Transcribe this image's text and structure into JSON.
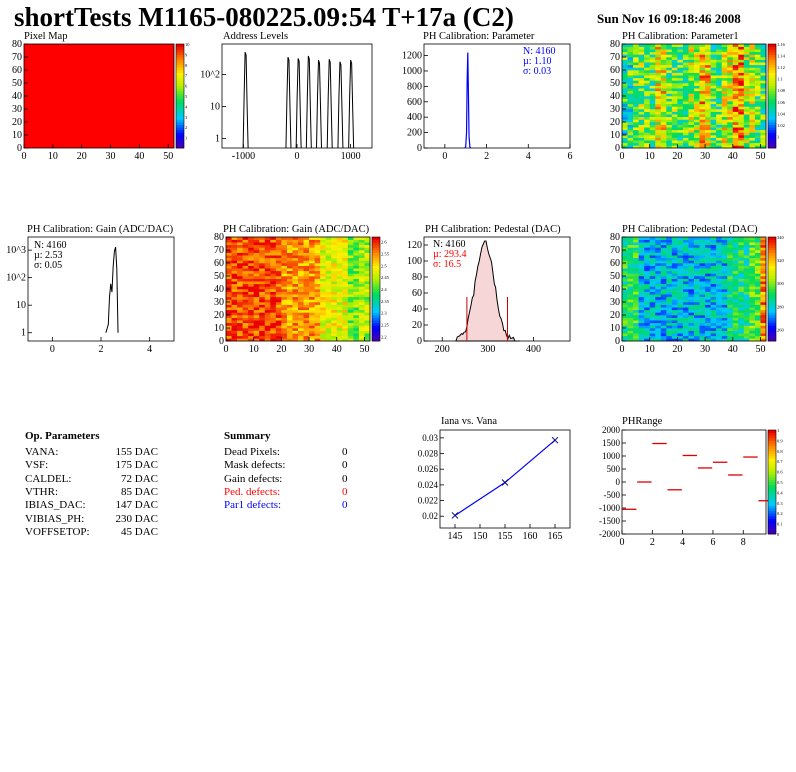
{
  "header": {
    "title": "shortTests M1165-080225.09:54 T+17a (C2)",
    "timestamp": "Sun Nov 16 09:18:46 2008"
  },
  "panels": {
    "pixel_map": {
      "title": "Pixel Map"
    },
    "address_levels": {
      "title": "Address Levels"
    },
    "ph_param": {
      "title": "PH Calibration: Parameter",
      "stats": [
        "N: 4160",
        "µ: 1.10",
        "σ: 0.03"
      ]
    },
    "ph_param1": {
      "title": "PH Calibration: Parameter1"
    },
    "gain_hist": {
      "title": "PH Calibration: Gain (ADC/DAC)",
      "stats": [
        "N: 4160",
        "µ: 2.53",
        "σ: 0.05"
      ]
    },
    "gain_map": {
      "title": "PH Calibration: Gain (ADC/DAC)"
    },
    "ped_hist": {
      "title": "PH Calibration: Pedestal (DAC)",
      "stats": [
        "N: 4160",
        "µ: 293.4",
        "σ: 16.5"
      ]
    },
    "ped_map": {
      "title": "PH Calibration: Pedestal (DAC)"
    },
    "iana": {
      "title": "Iana vs. Vana"
    },
    "phrange": {
      "title": "PHRange"
    }
  },
  "op_parameters": {
    "heading": "Op. Parameters",
    "rows": [
      {
        "name": "VANA:",
        "value": "155 DAC"
      },
      {
        "name": "VSF:",
        "value": "175 DAC"
      },
      {
        "name": "CALDEL:",
        "value": "72 DAC"
      },
      {
        "name": "VTHR:",
        "value": "85 DAC"
      },
      {
        "name": "IBIAS_DAC:",
        "value": "147 DAC"
      },
      {
        "name": "VIBIAS_PH:",
        "value": "230 DAC"
      },
      {
        "name": "VOFFSETOP:",
        "value": "45 DAC"
      }
    ]
  },
  "summary": {
    "heading": "Summary",
    "rows": [
      {
        "name": "Dead Pixels:",
        "value": "0",
        "color": "#000000"
      },
      {
        "name": "Mask defects:",
        "value": "0",
        "color": "#000000"
      },
      {
        "name": "Gain defects:",
        "value": "0",
        "color": "#000000"
      },
      {
        "name": "Ped. defects:",
        "value": "0",
        "color": "#ff0000"
      },
      {
        "name": "Par1 defects:",
        "value": "0",
        "color": "#0000ff"
      }
    ]
  },
  "chart_data": [
    {
      "id": "pixel_map",
      "type": "heatmap",
      "title": "Pixel Map",
      "xlim": [
        0,
        52
      ],
      "ylim": [
        0,
        80
      ],
      "xticks": [
        "0",
        "10",
        "20",
        "30",
        "40",
        "50"
      ],
      "yticks": [
        "0",
        "10",
        "20",
        "30",
        "40",
        "50",
        "60",
        "70",
        "80"
      ],
      "fill": "#ff0000",
      "zlim": [
        0,
        10
      ],
      "zticks": [
        "1",
        "2",
        "3",
        "4",
        "5",
        "6",
        "7",
        "8",
        "9",
        "10"
      ]
    },
    {
      "id": "address_levels",
      "type": "line",
      "title": "Address Levels",
      "log_y": true,
      "xlim": [
        -1400,
        1400
      ],
      "ylim": [
        0.5,
        900
      ],
      "xticks": [
        "-1000",
        "0",
        "1000"
      ],
      "yticks": [
        "1",
        "10",
        "10^2"
      ],
      "peaks": [
        {
          "x": -950,
          "y": 500
        },
        {
          "x": -150,
          "y": 350
        },
        {
          "x": 40,
          "y": 320
        },
        {
          "x": 230,
          "y": 380
        },
        {
          "x": 420,
          "y": 280
        },
        {
          "x": 620,
          "y": 300
        },
        {
          "x": 820,
          "y": 250
        },
        {
          "x": 1020,
          "y": 280
        }
      ]
    },
    {
      "id": "ph_param",
      "type": "line",
      "title": "PH Calibration: Parameter",
      "xlim": [
        -1,
        6
      ],
      "ylim": [
        0,
        1350
      ],
      "xticks": [
        "0",
        "2",
        "4",
        "6"
      ],
      "yticks": [
        "0",
        "200",
        "400",
        "600",
        "800",
        "1000",
        "1200"
      ],
      "x": [
        0.96,
        1.0,
        1.04,
        1.07,
        1.1,
        1.13,
        1.16,
        1.2,
        1.24
      ],
      "values": [
        0,
        20,
        200,
        900,
        1240,
        700,
        150,
        15,
        0
      ]
    },
    {
      "id": "ph_param1",
      "type": "heatmap",
      "title": "PH Calibration: Parameter1",
      "xlim": [
        0,
        52
      ],
      "ylim": [
        0,
        80
      ],
      "xticks": [
        "0",
        "10",
        "20",
        "30",
        "40",
        "50"
      ],
      "yticks": [
        "0",
        "10",
        "20",
        "30",
        "40",
        "50",
        "60",
        "70",
        "80"
      ],
      "zlim": [
        0.98,
        1.16
      ],
      "zticks": [
        "1",
        "1.02",
        "1.04",
        "1.06",
        "1.08",
        "1.1",
        "1.12",
        "1.14",
        "1.16"
      ]
    },
    {
      "id": "gain_hist",
      "type": "line",
      "title": "PH Calibration: Gain (ADC/DAC)",
      "log_y": true,
      "xlim": [
        -1,
        5
      ],
      "ylim": [
        0.5,
        3000
      ],
      "xticks": [
        "0",
        "2",
        "4"
      ],
      "yticks": [
        "1",
        "10",
        "10^2",
        "10^3"
      ],
      "x": [
        2.2,
        2.3,
        2.35,
        2.4,
        2.45,
        2.5,
        2.55,
        2.6,
        2.65,
        2.7
      ],
      "values": [
        1,
        2,
        20,
        60,
        30,
        250,
        900,
        1300,
        200,
        1
      ]
    },
    {
      "id": "gain_map",
      "type": "heatmap",
      "title": "PH Calibration: Gain (ADC/DAC)",
      "xlim": [
        0,
        52
      ],
      "ylim": [
        0,
        80
      ],
      "xticks": [
        "0",
        "10",
        "20",
        "30",
        "40",
        "50"
      ],
      "yticks": [
        "0",
        "10",
        "20",
        "30",
        "40",
        "50",
        "60",
        "70",
        "80"
      ],
      "zlim": [
        2.18,
        2.62
      ],
      "zticks": [
        "2.2",
        "2.25",
        "2.3",
        "2.35",
        "2.4",
        "2.45",
        "2.5",
        "2.55",
        "2.6"
      ]
    },
    {
      "id": "ped_hist",
      "type": "bar",
      "title": "PH Calibration: Pedestal (DAC)",
      "xlim": [
        160,
        480
      ],
      "ylim": [
        0,
        130
      ],
      "xticks": [
        "200",
        "300",
        "400"
      ],
      "yticks": [
        "0",
        "20",
        "40",
        "60",
        "80",
        "100",
        "120"
      ],
      "mean": 293.4,
      "sigma": 16.5,
      "cut_lines": [
        254,
        343
      ],
      "cut_height": 55
    },
    {
      "id": "ped_map",
      "type": "heatmap",
      "title": "PH Calibration: Pedestal (DAC)",
      "xlim": [
        0,
        52
      ],
      "ylim": [
        0,
        80
      ],
      "xticks": [
        "0",
        "10",
        "20",
        "30",
        "40",
        "50"
      ],
      "yticks": [
        "0",
        "10",
        "20",
        "30",
        "40",
        "50",
        "60",
        "70",
        "80"
      ],
      "zlim": [
        250,
        340
      ],
      "zticks": [
        "260",
        "280",
        "300",
        "320",
        "340"
      ]
    },
    {
      "id": "iana",
      "type": "scatter",
      "title": "Iana vs. Vana",
      "xlim": [
        142,
        168
      ],
      "ylim": [
        0.0185,
        0.031
      ],
      "xticks": [
        "145",
        "150",
        "155",
        "160",
        "165"
      ],
      "yticks": [
        "0.02",
        "0.022",
        "0.024",
        "0.026",
        "0.028",
        "0.03"
      ],
      "x": [
        145,
        155,
        165
      ],
      "values": [
        0.0201,
        0.0243,
        0.0297
      ]
    },
    {
      "id": "phrange",
      "type": "scatter",
      "title": "PHRange",
      "xlim": [
        0,
        9.5
      ],
      "ylim": [
        -2000,
        2000
      ],
      "xticks": [
        "0",
        "2",
        "4",
        "6",
        "8"
      ],
      "yticks": [
        "-2000",
        "-1500",
        "-1000",
        "-500",
        "0",
        "500",
        "1000",
        "1500",
        "2000"
      ],
      "x": [
        0,
        1,
        2,
        3,
        4,
        5,
        6,
        7,
        8,
        9
      ],
      "values": [
        -1050,
        0,
        1480,
        -300,
        1020,
        540,
        760,
        270,
        960,
        -720
      ],
      "zlim": [
        0,
        1
      ],
      "zticks": [
        "0",
        "0.1",
        "0.2",
        "0.3",
        "0.4",
        "0.5",
        "0.6",
        "0.7",
        "0.8",
        "0.9",
        "1"
      ]
    }
  ]
}
